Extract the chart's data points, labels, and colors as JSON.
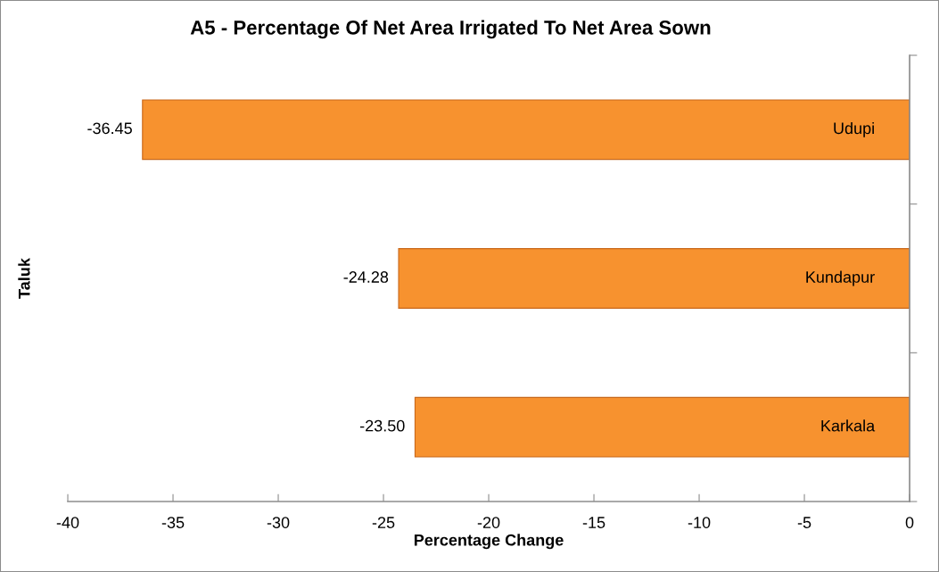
{
  "chart_data": {
    "type": "bar",
    "orientation": "horizontal",
    "title": "A5 - Percentage Of Net Area Irrigated To Net Area Sown",
    "xlabel": "Percentage Change",
    "ylabel": "Taluk",
    "categories": [
      "Udupi",
      "Kundapur",
      "Karkala"
    ],
    "values": [
      -36.45,
      -24.28,
      -23.5
    ],
    "value_labels": [
      "-36.45",
      "-24.28",
      "-23.50"
    ],
    "color": "#f7922f",
    "xlim": [
      -40,
      0
    ],
    "xticks": [
      -40,
      -35,
      -30,
      -25,
      -20,
      -15,
      -10,
      -5,
      0
    ],
    "grid": false
  }
}
